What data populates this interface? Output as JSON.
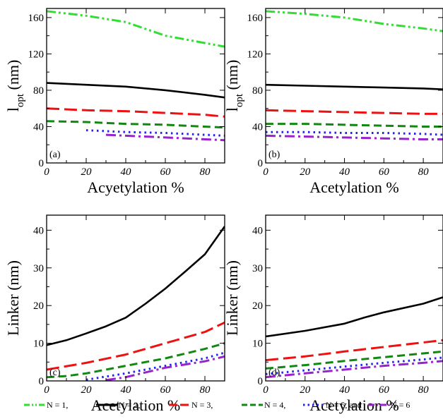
{
  "chart_data": [
    {
      "type": "line",
      "panel_label": "(a)",
      "xlabel": "Acyetylation %",
      "ylabel_main": "l",
      "ylabel_sub": "opt",
      "ylabel_unit": " (nm)",
      "xlim": [
        0,
        90
      ],
      "ylim": [
        0,
        170
      ],
      "xticks": [
        0,
        20,
        40,
        60,
        80
      ],
      "yticks": [
        0,
        40,
        80,
        120,
        160
      ],
      "grid": false,
      "series": [
        {
          "name": "N = 1,",
          "color": "#33dd33",
          "dash": "dashdotdot",
          "x": [
            0,
            20,
            40,
            60,
            80,
            90
          ],
          "y": [
            167,
            162,
            155,
            140,
            132,
            128
          ]
        },
        {
          "name": "N = 2,",
          "color": "#000000",
          "dash": "solid",
          "x": [
            0,
            20,
            40,
            60,
            80,
            90
          ],
          "y": [
            88,
            86,
            84,
            80,
            75,
            72
          ]
        },
        {
          "name": "N = 3,",
          "color": "#ee1111",
          "dash": "longdash",
          "x": [
            0,
            20,
            40,
            60,
            80,
            90
          ],
          "y": [
            60,
            58,
            57,
            55,
            53,
            51
          ]
        },
        {
          "name": "N = 4,",
          "color": "#118811",
          "dash": "dash",
          "x": [
            0,
            20,
            40,
            60,
            80,
            90
          ],
          "y": [
            46,
            45,
            43,
            42,
            40,
            39
          ]
        },
        {
          "name": "N = 5, and",
          "color": "#2222ee",
          "dash": "dot",
          "x": [
            20,
            40,
            60,
            80,
            90
          ],
          "y": [
            36,
            34,
            33,
            31,
            30
          ]
        },
        {
          "name": "N = 6",
          "color": "#9922cc",
          "dash": "dashdot",
          "x": [
            30,
            40,
            60,
            80,
            90
          ],
          "y": [
            31,
            30,
            28,
            26,
            25
          ]
        }
      ]
    },
    {
      "type": "line",
      "panel_label": "(b)",
      "xlabel": "Acetylation %",
      "ylabel_main": "l",
      "ylabel_sub": "opt",
      "ylabel_unit": " (nm)",
      "xlim": [
        0,
        90
      ],
      "ylim": [
        0,
        170
      ],
      "xticks": [
        0,
        20,
        40,
        60,
        80
      ],
      "yticks": [
        0,
        40,
        80,
        120,
        160
      ],
      "grid": false,
      "series": [
        {
          "name": "N = 1,",
          "color": "#33dd33",
          "dash": "dashdotdot",
          "x": [
            0,
            20,
            40,
            60,
            80,
            90
          ],
          "y": [
            167,
            164,
            160,
            153,
            148,
            145
          ]
        },
        {
          "name": "N = 2,",
          "color": "#000000",
          "dash": "solid",
          "x": [
            0,
            20,
            40,
            60,
            80,
            90
          ],
          "y": [
            86,
            85,
            84,
            83,
            82,
            81
          ]
        },
        {
          "name": "N = 3,",
          "color": "#ee1111",
          "dash": "longdash",
          "x": [
            0,
            20,
            40,
            60,
            80,
            90
          ],
          "y": [
            58,
            57,
            56,
            55,
            54,
            54
          ]
        },
        {
          "name": "N = 4,",
          "color": "#118811",
          "dash": "dash",
          "x": [
            0,
            20,
            40,
            60,
            80,
            90
          ],
          "y": [
            43,
            43,
            42,
            41,
            40,
            40
          ]
        },
        {
          "name": "N = 5, and",
          "color": "#2222ee",
          "dash": "dot",
          "x": [
            0,
            20,
            40,
            60,
            80,
            90
          ],
          "y": [
            34,
            34,
            33,
            33,
            32,
            31
          ]
        },
        {
          "name": "N = 6",
          "color": "#9922cc",
          "dash": "dashdot",
          "x": [
            0,
            20,
            40,
            60,
            80,
            90
          ],
          "y": [
            30,
            29,
            28,
            27,
            26,
            26
          ]
        }
      ]
    },
    {
      "type": "line",
      "panel_label": "(c)",
      "xlabel": "Acetylation %",
      "ylabel": "Linker (nm)",
      "xlim": [
        0,
        90
      ],
      "ylim": [
        0,
        44
      ],
      "xticks": [
        0,
        20,
        40,
        60,
        80
      ],
      "yticks": [
        0,
        10,
        20,
        30,
        40
      ],
      "grid": false,
      "series": [
        {
          "name": "N = 1,",
          "color": "#33dd33",
          "dash": "dashdotdot",
          "x": [],
          "y": []
        },
        {
          "name": "N = 2,",
          "color": "#000000",
          "dash": "solid",
          "x": [
            0,
            10,
            20,
            30,
            40,
            50,
            60,
            70,
            80,
            90
          ],
          "y": [
            9.5,
            10.8,
            12.6,
            14.5,
            16.8,
            20.5,
            24.5,
            29,
            33.6,
            41
          ]
        },
        {
          "name": "N = 3,",
          "color": "#ee1111",
          "dash": "longdash",
          "x": [
            0,
            20,
            40,
            60,
            80,
            90
          ],
          "y": [
            3,
            4.8,
            7,
            10,
            13,
            15.5
          ]
        },
        {
          "name": "N = 4,",
          "color": "#118811",
          "dash": "dash",
          "x": [
            0,
            10,
            20,
            40,
            60,
            80,
            90
          ],
          "y": [
            1,
            1.3,
            2,
            4,
            6,
            8.5,
            10
          ]
        },
        {
          "name": "N = 5, and",
          "color": "#2222ee",
          "dash": "dot",
          "x": [
            20,
            40,
            60,
            80,
            90
          ],
          "y": [
            0.3,
            2,
            4,
            6,
            7.5
          ]
        },
        {
          "name": "N = 6",
          "color": "#9922cc",
          "dash": "dashdot",
          "x": [
            30,
            40,
            60,
            80,
            90
          ],
          "y": [
            0.2,
            1,
            3.5,
            5.2,
            6.5
          ]
        }
      ]
    },
    {
      "type": "line",
      "panel_label": "(d)",
      "xlabel": "Acetylation %",
      "ylabel": "Linker (nm)",
      "xlim": [
        0,
        90
      ],
      "ylim": [
        0,
        44
      ],
      "xticks": [
        0,
        20,
        40,
        60,
        80
      ],
      "yticks": [
        0,
        10,
        20,
        30,
        40
      ],
      "grid": false,
      "series": [
        {
          "name": "N = 1,",
          "color": "#33dd33",
          "dash": "dashdotdot",
          "x": [],
          "y": []
        },
        {
          "name": "N = 2,",
          "color": "#000000",
          "dash": "solid",
          "x": [
            0,
            20,
            40,
            50,
            60,
            80,
            90
          ],
          "y": [
            11.8,
            13.3,
            15.2,
            16.8,
            18.2,
            20.5,
            22.2
          ]
        },
        {
          "name": "N = 3,",
          "color": "#ee1111",
          "dash": "longdash",
          "x": [
            0,
            20,
            40,
            60,
            80,
            90
          ],
          "y": [
            5.5,
            6.5,
            7.8,
            9,
            10.2,
            10.8
          ]
        },
        {
          "name": "N = 4,",
          "color": "#118811",
          "dash": "dash",
          "x": [
            0,
            20,
            40,
            60,
            80,
            90
          ],
          "y": [
            3.3,
            4.2,
            5.3,
            6.3,
            7.3,
            7.8
          ]
        },
        {
          "name": "N = 5, and",
          "color": "#2222ee",
          "dash": "dot",
          "x": [
            0,
            20,
            40,
            60,
            80,
            90
          ],
          "y": [
            1.8,
            2.8,
            3.8,
            4.8,
            5.7,
            6.2
          ]
        },
        {
          "name": "N = 6",
          "color": "#9922cc",
          "dash": "dashdot",
          "x": [
            0,
            20,
            40,
            60,
            80,
            90
          ],
          "y": [
            1,
            2,
            3,
            4,
            4.8,
            5.3
          ]
        }
      ]
    }
  ],
  "legend": {
    "placement": "bottom",
    "entries": [
      {
        "label": "N = 1,",
        "color": "#33dd33",
        "dash": "dashdotdot"
      },
      {
        "label": "N = 2,",
        "color": "#000000",
        "dash": "solid"
      },
      {
        "label": "N = 3,",
        "color": "#ee1111",
        "dash": "longdash"
      },
      {
        "label": "N = 4,",
        "color": "#118811",
        "dash": "dash"
      },
      {
        "label": "N = 5, and",
        "color": "#2222ee",
        "dash": "dot"
      },
      {
        "label": "N = 6",
        "color": "#9922cc",
        "dash": "dashdot"
      }
    ]
  }
}
